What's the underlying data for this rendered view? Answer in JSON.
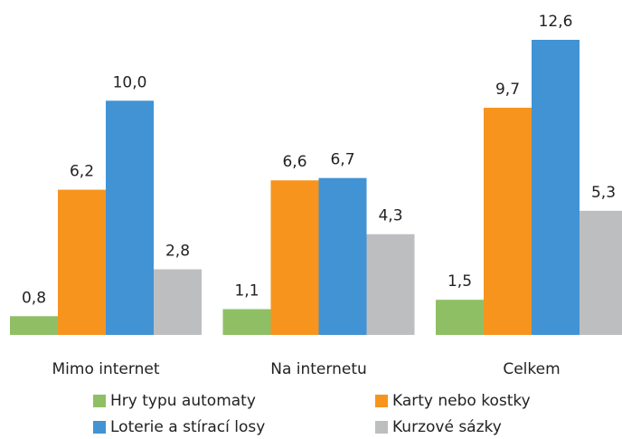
{
  "chart_data": {
    "type": "bar",
    "categories": [
      "Mimo internet",
      "Na internetu",
      "Celkem"
    ],
    "series": [
      {
        "name": "Hry typu automaty",
        "color": "#8fbf64",
        "values": [
          0.8,
          1.1,
          1.5
        ],
        "value_labels": [
          "0,8",
          "1,1",
          "1,5"
        ]
      },
      {
        "name": "Karty nebo kostky",
        "color": "#f7941e",
        "values": [
          6.2,
          6.6,
          9.7
        ],
        "value_labels": [
          "6,2",
          "6,6",
          "9,7"
        ]
      },
      {
        "name": "Loterie a stírací losy",
        "color": "#4193d3",
        "values": [
          10.0,
          6.7,
          12.6
        ],
        "value_labels": [
          "10,0",
          "6,7",
          "12,6"
        ]
      },
      {
        "name": "Kurzové sázky",
        "color": "#bdbec0",
        "values": [
          2.8,
          4.3,
          5.3
        ],
        "value_labels": [
          "2,8",
          "4,3",
          "5,3"
        ]
      }
    ]
  }
}
